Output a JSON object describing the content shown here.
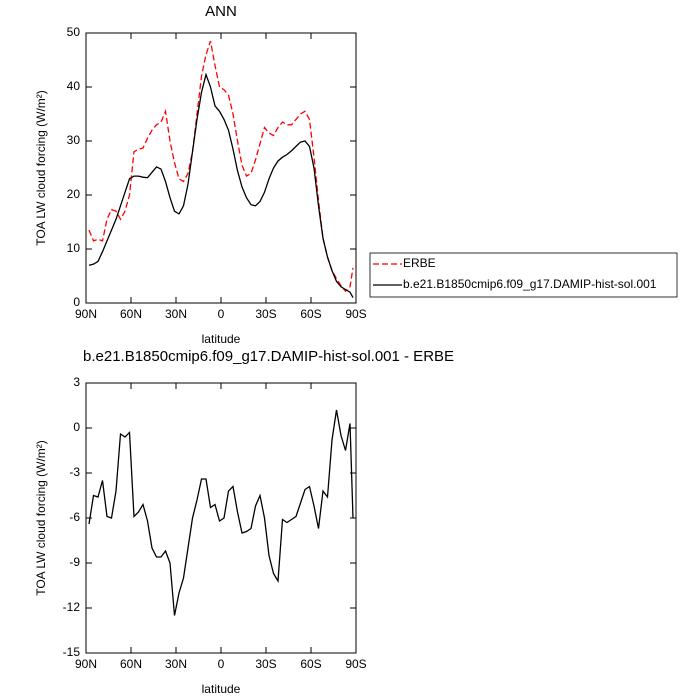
{
  "chart_data": [
    {
      "type": "line",
      "title": "ANN",
      "xlabel": "latitude",
      "ylabel": "TOA LW cloud forcing (W/m²)",
      "xlim": [
        90,
        -90
      ],
      "ylim": [
        0,
        50
      ],
      "xticks": [
        {
          "value": 90,
          "label": "90N"
        },
        {
          "value": 60,
          "label": "60N"
        },
        {
          "value": 30,
          "label": "30N"
        },
        0,
        {
          "value": -30,
          "label": "30S"
        },
        {
          "value": -60,
          "label": "60S"
        },
        {
          "value": -90,
          "label": "90S"
        }
      ],
      "yticks": [
        0,
        10,
        20,
        30,
        40,
        50
      ],
      "legend": "outside-right",
      "x": [
        88,
        85,
        82,
        79,
        76,
        73,
        70,
        67,
        64,
        61,
        58,
        55,
        52,
        49,
        46,
        43,
        40,
        37,
        34,
        31,
        28,
        25,
        22,
        19,
        16,
        13,
        10,
        7,
        4,
        1,
        -2,
        -5,
        -8,
        -11,
        -14,
        -17,
        -20,
        -23,
        -26,
        -29,
        -32,
        -35,
        -38,
        -41,
        -44,
        -47,
        -50,
        -53,
        -56,
        -59,
        -62,
        -65,
        -68,
        -71,
        -74,
        -77,
        -80,
        -83,
        -86,
        -88
      ],
      "series": [
        {
          "name": "ERBE",
          "color": "#ff0000",
          "linestyle": "dashed",
          "values": [
            13.5,
            11.5,
            11.8,
            11.5,
            15.5,
            17.3,
            17,
            15.5,
            17,
            20,
            28,
            28.5,
            28.7,
            30.5,
            32,
            33,
            33.5,
            35.5,
            30,
            26,
            23,
            22.5,
            24,
            28,
            35,
            42,
            46,
            48.5,
            44,
            40,
            39.5,
            38.5,
            35,
            30,
            25.5,
            23.5,
            24,
            26.5,
            29.5,
            32.5,
            31.5,
            31,
            32.5,
            33.5,
            33,
            33,
            34,
            35,
            35.5,
            34,
            27,
            19,
            12,
            8.5,
            6,
            4.5,
            3.2,
            2.2,
            3,
            6.5
          ]
        },
        {
          "name": "b.e21.B1850cmip6.f09_g17.DAMIP-hist-sol.001",
          "color": "#000000",
          "linestyle": "solid",
          "values": [
            7,
            7.2,
            7.7,
            9.5,
            11.5,
            13.5,
            15.5,
            18,
            20.5,
            23,
            23.5,
            23.5,
            23.3,
            23.2,
            24.2,
            25.2,
            24.8,
            22.5,
            19.5,
            17,
            16.5,
            18,
            22,
            28,
            34,
            39,
            42.3,
            40,
            36.5,
            35.5,
            34,
            32,
            28.5,
            24.5,
            21.5,
            19.5,
            18.2,
            18,
            18.8,
            20.5,
            23,
            25,
            26.3,
            27,
            27.5,
            28.2,
            29,
            29.8,
            30,
            29,
            25,
            18,
            12,
            8.5,
            6,
            4,
            3,
            2.5,
            2,
            1
          ]
        }
      ]
    },
    {
      "type": "line",
      "title": "b.e21.B1850cmip6.f09_g17.DAMIP-hist-sol.001 - ERBE",
      "xlabel": "latitude",
      "ylabel": "TOA LW cloud forcing (W/m²)",
      "xlim": [
        90,
        -90
      ],
      "ylim": [
        -15,
        3
      ],
      "xticks": [
        {
          "value": 90,
          "label": "90N"
        },
        {
          "value": 60,
          "label": "60N"
        },
        {
          "value": 30,
          "label": "30N"
        },
        0,
        {
          "value": -30,
          "label": "30S"
        },
        {
          "value": -60,
          "label": "60S"
        },
        {
          "value": -90,
          "label": "90S"
        }
      ],
      "yticks": [
        3,
        0,
        -3,
        -6,
        -9,
        -12,
        -15
      ],
      "x": [
        88,
        85,
        82,
        79,
        76,
        73,
        70,
        67,
        64,
        61,
        58,
        55,
        52,
        49,
        46,
        43,
        40,
        37,
        34,
        31,
        28,
        25,
        22,
        19,
        16,
        13,
        10,
        7,
        4,
        1,
        -2,
        -5,
        -8,
        -11,
        -14,
        -17,
        -20,
        -23,
        -26,
        -29,
        -32,
        -35,
        -38,
        -41,
        -44,
        -47,
        -50,
        -53,
        -56,
        -59,
        -62,
        -65,
        -68,
        -71,
        -74,
        -77,
        -80,
        -83,
        -86,
        -88
      ],
      "series": [
        {
          "color": "#000000",
          "linestyle": "solid",
          "values": [
            -6.4,
            -4.5,
            -4.6,
            -3.5,
            -5.9,
            -6,
            -4.2,
            -0.4,
            -0.6,
            -0.3,
            -5.9,
            -5.6,
            -5.1,
            -6.2,
            -8,
            -8.6,
            -8.6,
            -8.2,
            -9,
            -12.5,
            -11,
            -10,
            -8,
            -6,
            -4.8,
            -3.4,
            -3.4,
            -5.3,
            -5.1,
            -6.2,
            -6,
            -4.2,
            -3.9,
            -5.6,
            -7,
            -6.9,
            -6.7,
            -5.2,
            -4.5,
            -6,
            -8.5,
            -9.7,
            -10.2,
            -6.1,
            -6.3,
            -6.1,
            -5.9,
            -5,
            -4.1,
            -3.9,
            -5.2,
            -6.7,
            -4.2,
            -4.6,
            -0.8,
            1.2,
            -0.5,
            -1.5,
            0.3,
            -6
          ]
        }
      ]
    }
  ]
}
